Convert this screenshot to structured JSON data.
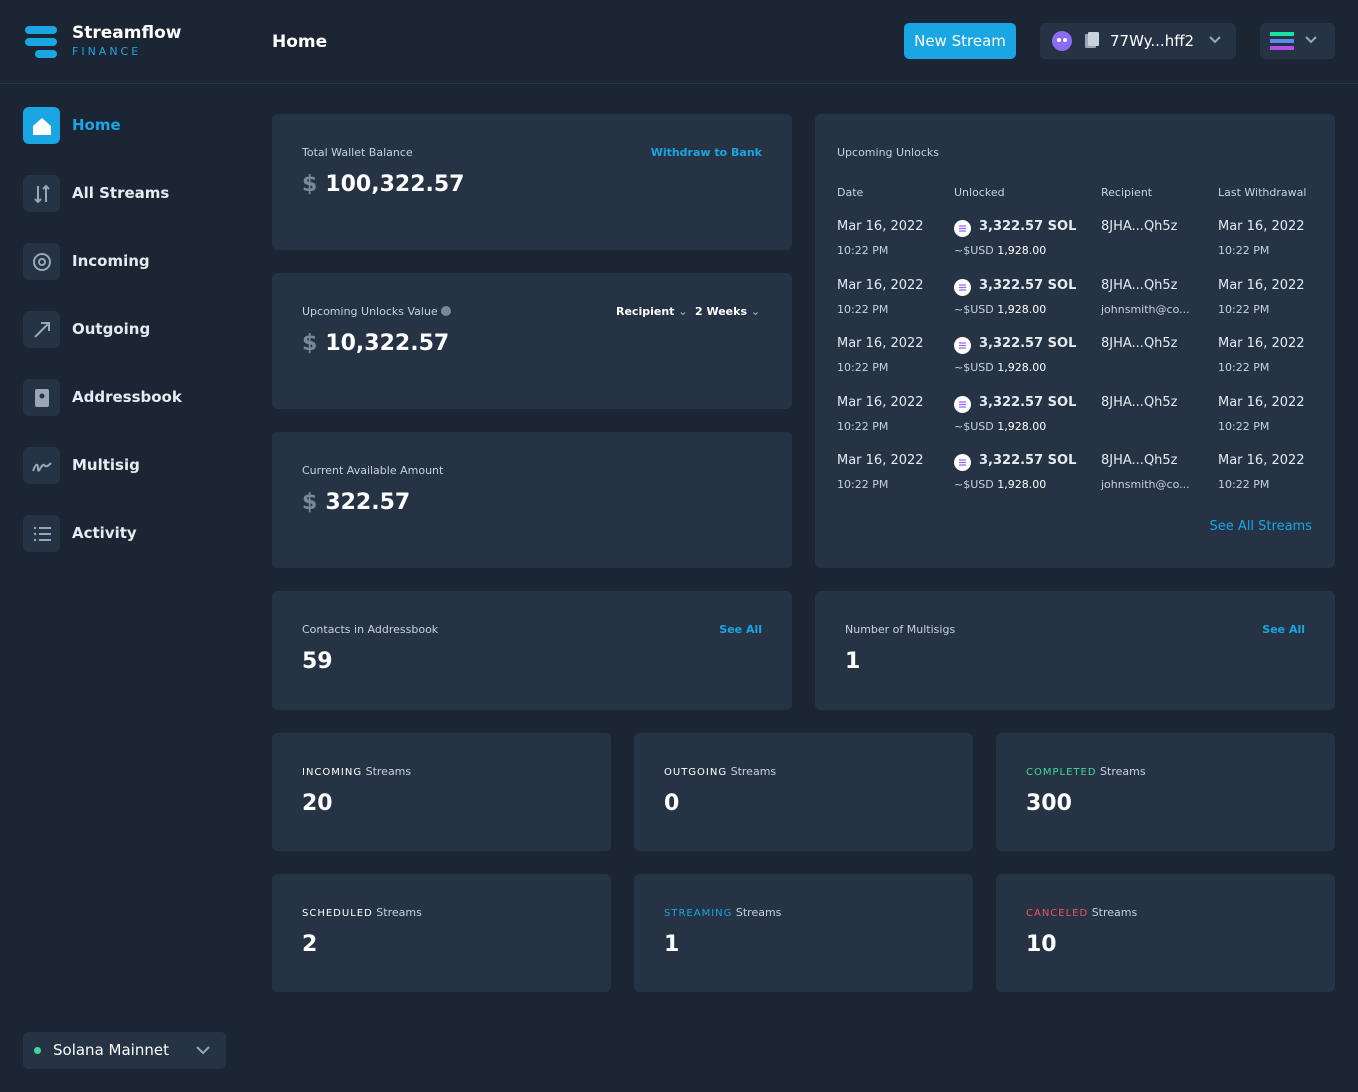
{
  "brand": {
    "name": "Streamflow",
    "sub": "FINANCE"
  },
  "header": {
    "title": "Home",
    "new_stream": "New Stream",
    "wallet": "77Wy...hff2"
  },
  "nav": [
    "Home",
    "All Streams",
    "Incoming",
    "Outgoing",
    "Addressbook",
    "Multisig",
    "Activity"
  ],
  "network": "Solana Mainnet",
  "cards": {
    "wallet": {
      "label": "Total Wallet Balance",
      "action": "Withdraw to Bank",
      "currency": "$",
      "amount": "100,322.57"
    },
    "unlocks_value": {
      "label": "Upcoming Unlocks Value",
      "filters": [
        "Recipient",
        "2 Weeks"
      ],
      "currency": "$",
      "amount": "10,322.57"
    },
    "available": {
      "label": "Current Available Amount",
      "currency": "$",
      "amount": "322.57"
    },
    "contacts": {
      "label": "Contacts in Addressbook",
      "action": "See All",
      "value": 59
    },
    "multisigs": {
      "label": "Number of Multisigs",
      "action": "See All",
      "value": 1
    }
  },
  "unlocks": {
    "title": "Upcoming Unlocks",
    "columns": [
      "Date",
      "Unlocked",
      "Recipient",
      "Last Withdrawal"
    ],
    "rows": [
      {
        "date": "Mar 16, 2022",
        "time": "10:22 PM",
        "amount": "3,322.57 SOL",
        "usd_unit": "~$USD",
        "usd": "1,928.00",
        "recipient": "8JHA...Qh5z",
        "last_date": "Mar 16, 2022",
        "last_time": "10:22 PM"
      },
      {
        "date": "Mar 16, 2022",
        "time": "10:22 PM",
        "amount": "3,322.57 SOL",
        "usd_unit": "~$USD",
        "usd": "1,928.00",
        "recipient": "8JHA...Qh5z",
        "email": "johnsmith@co...",
        "last_date": "Mar 16, 2022",
        "last_time": "10:22 PM"
      },
      {
        "date": "Mar 16, 2022",
        "time": "10:22 PM",
        "amount": "3,322.57 SOL",
        "usd_unit": "~$USD",
        "usd": "1,928.00",
        "recipient": "8JHA...Qh5z",
        "last_date": "Mar 16, 2022",
        "last_time": "10:22 PM"
      },
      {
        "date": "Mar 16, 2022",
        "time": "10:22 PM",
        "amount": "3,322.57 SOL",
        "usd_unit": "~$USD",
        "usd": "1,928.00",
        "recipient": "8JHA...Qh5z",
        "last_date": "Mar 16, 2022",
        "last_time": "10:22 PM"
      },
      {
        "date": "Mar 16, 2022",
        "time": "10:22 PM",
        "amount": "3,322.57 SOL",
        "usd_unit": "~$USD",
        "usd": "1,928.00",
        "recipient": "8JHA...Qh5z",
        "email": "johnsmith@co...",
        "last_date": "Mar 16, 2022",
        "last_time": "10:22 PM"
      }
    ],
    "link": "See All Streams"
  },
  "streams": [
    {
      "status": "INCOMING",
      "label": "Streams",
      "value": 20,
      "color": "#ffffff"
    },
    {
      "status": "OUTGOING",
      "label": "Streams",
      "value": 0,
      "color": "#ffffff"
    },
    {
      "status": "COMPLETED",
      "label": "Streams",
      "value": 300,
      "color": "#3fd89b"
    },
    {
      "status": "SCHEDULED",
      "label": "Streams",
      "value": 2,
      "color": "#ffffff"
    },
    {
      "status": "STREAMING",
      "label": "Streams",
      "value": 1,
      "color": "#19a6e3"
    },
    {
      "status": "CANCELED",
      "label": "Streams",
      "value": 10,
      "color": "#f0545e"
    }
  ]
}
